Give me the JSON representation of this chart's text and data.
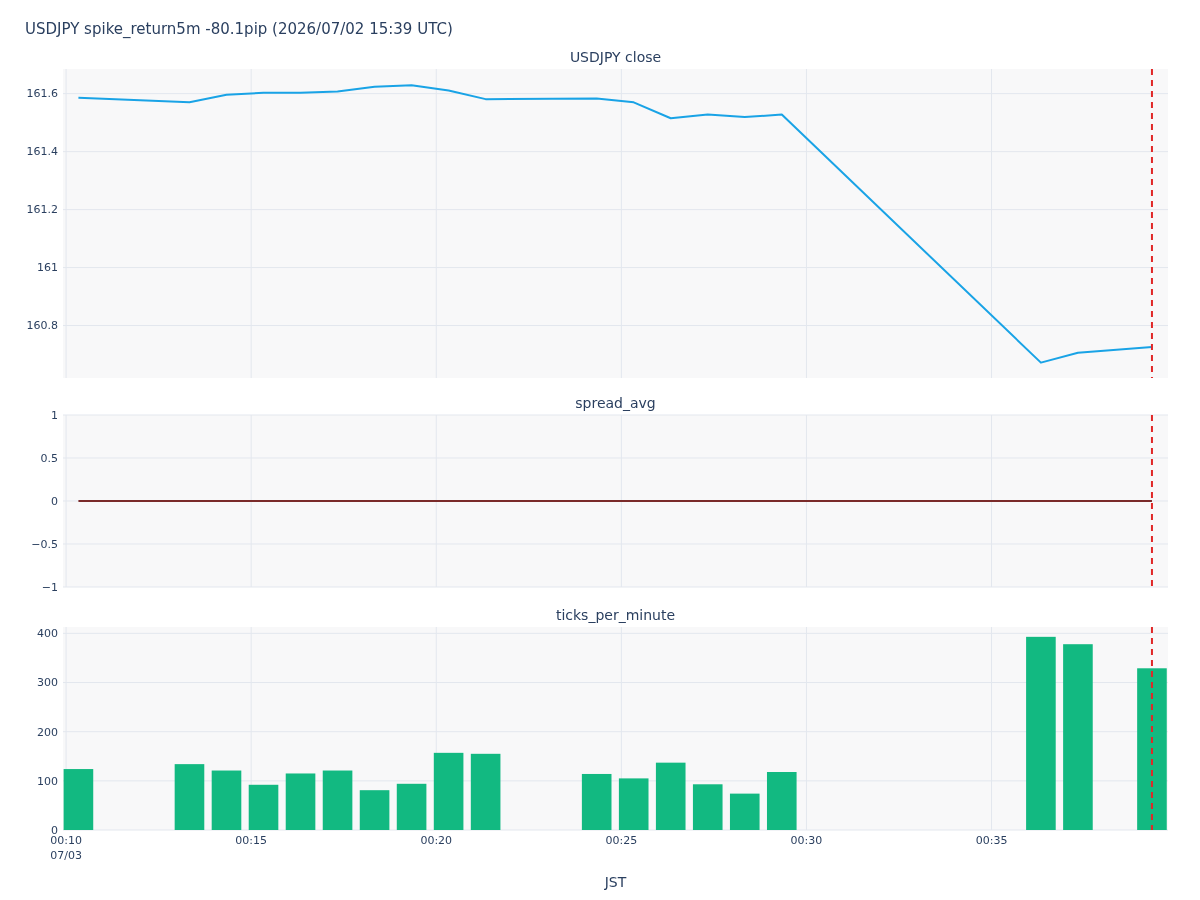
{
  "chart_data": [
    {
      "type": "line",
      "title": "USDJPY spike_return5m -80.1pip (2026/07/02 15:39 UTC)",
      "subtitle": "USDJPY close",
      "x": [
        "2026-07-03T00:10:20",
        "2026-07-03T00:13:20",
        "2026-07-03T00:14:20",
        "2026-07-03T00:15:20",
        "2026-07-03T00:16:20",
        "2026-07-03T00:17:20",
        "2026-07-03T00:18:20",
        "2026-07-03T00:19:20",
        "2026-07-03T00:20:20",
        "2026-07-03T00:21:20",
        "2026-07-03T00:24:20",
        "2026-07-03T00:25:20",
        "2026-07-03T00:26:20",
        "2026-07-03T00:27:20",
        "2026-07-03T00:28:20",
        "2026-07-03T00:29:20",
        "2026-07-03T00:36:20",
        "2026-07-03T00:37:20",
        "2026-07-03T00:39:20"
      ],
      "series": [
        {
          "color": "#19a3e6",
          "values": [
            161.586,
            161.57,
            161.596,
            161.603,
            161.603,
            161.607,
            161.624,
            161.629,
            161.611,
            161.581,
            161.583,
            161.57,
            161.515,
            161.528,
            161.519,
            161.528,
            160.672,
            160.706,
            160.726
          ]
        }
      ],
      "xlim": [
        "2026-07-03T00:09:55",
        "2026-07-03T00:39:46"
      ],
      "xticks": [
        {
          "value": "2026-07-03T00:10",
          "label": null
        },
        {
          "value": "2026-07-03T00:15",
          "label": null
        },
        {
          "value": "2026-07-03T00:20",
          "label": null
        },
        {
          "value": "2026-07-03T00:25",
          "label": null
        },
        {
          "value": "2026-07-03T00:30",
          "label": null
        },
        {
          "value": "2026-07-03T00:35",
          "label": null
        }
      ],
      "ylim": [
        160.619,
        161.685
      ],
      "yticks": [
        160.8,
        161,
        161.2,
        161.4,
        161.6
      ],
      "grid": true,
      "tick_labels": "y",
      "ref_lines": [
        {
          "axis": "x",
          "value": "2026-07-03T00:39:20",
          "color": "#e02828",
          "line_style": "dashed"
        }
      ]
    },
    {
      "type": "line",
      "title": "spread_avg",
      "x": [
        "2026-07-03T00:10:20",
        "2026-07-03T00:13:20",
        "2026-07-03T00:14:20",
        "2026-07-03T00:15:20",
        "2026-07-03T00:16:20",
        "2026-07-03T00:17:20",
        "2026-07-03T00:18:20",
        "2026-07-03T00:19:20",
        "2026-07-03T00:20:20",
        "2026-07-03T00:21:20",
        "2026-07-03T00:24:20",
        "2026-07-03T00:25:20",
        "2026-07-03T00:26:20",
        "2026-07-03T00:27:20",
        "2026-07-03T00:28:20",
        "2026-07-03T00:29:20",
        "2026-07-03T00:36:20",
        "2026-07-03T00:37:20",
        "2026-07-03T00:39:20"
      ],
      "series": [
        {
          "color": "#7a2a2a",
          "values": [
            0,
            0,
            0,
            0,
            0,
            0,
            0,
            0,
            0,
            0,
            0,
            0,
            0,
            0,
            0,
            0,
            0,
            0,
            0
          ]
        }
      ],
      "xlim": [
        "2026-07-03T00:09:55",
        "2026-07-03T00:39:46"
      ],
      "xticks": [
        {
          "value": "2026-07-03T00:10",
          "label": null
        },
        {
          "value": "2026-07-03T00:15",
          "label": null
        },
        {
          "value": "2026-07-03T00:20",
          "label": null
        },
        {
          "value": "2026-07-03T00:25",
          "label": null
        },
        {
          "value": "2026-07-03T00:30",
          "label": null
        },
        {
          "value": "2026-07-03T00:35",
          "label": null
        }
      ],
      "ylim": [
        -1,
        1
      ],
      "yticks": [
        {
          "value": -1,
          "label": "−1"
        },
        {
          "value": -0.5,
          "label": "−0.5"
        },
        0,
        0.5,
        1
      ],
      "grid": true,
      "tick_labels": "y",
      "ref_lines": [
        {
          "axis": "x",
          "value": "2026-07-03T00:39:20",
          "color": "#e02828",
          "line_style": "dashed"
        }
      ]
    },
    {
      "type": "bar",
      "title": "ticks_per_minute",
      "xlabel": "JST",
      "x": [
        "2026-07-03T00:10:20",
        "2026-07-03T00:13:20",
        "2026-07-03T00:14:20",
        "2026-07-03T00:15:20",
        "2026-07-03T00:16:20",
        "2026-07-03T00:17:20",
        "2026-07-03T00:18:20",
        "2026-07-03T00:19:20",
        "2026-07-03T00:20:20",
        "2026-07-03T00:21:20",
        "2026-07-03T00:24:20",
        "2026-07-03T00:25:20",
        "2026-07-03T00:26:20",
        "2026-07-03T00:27:20",
        "2026-07-03T00:28:20",
        "2026-07-03T00:29:20",
        "2026-07-03T00:36:20",
        "2026-07-03T00:37:20",
        "2026-07-03T00:39:20"
      ],
      "series": [
        {
          "color": "#12b981",
          "values": [
            124,
            134,
            121,
            92,
            115,
            121,
            81,
            94,
            157,
            155,
            114,
            105,
            137,
            93,
            74,
            118,
            393,
            378,
            329
          ]
        }
      ],
      "xlim": [
        "2026-07-03T00:09:55",
        "2026-07-03T00:39:46"
      ],
      "xticks": [
        {
          "value": "2026-07-03T00:10",
          "label": "00:10\n07/03"
        },
        {
          "value": "2026-07-03T00:15",
          "label": "00:15"
        },
        {
          "value": "2026-07-03T00:20",
          "label": "00:20"
        },
        {
          "value": "2026-07-03T00:25",
          "label": "00:25"
        },
        {
          "value": "2026-07-03T00:30",
          "label": "00:30"
        },
        {
          "value": "2026-07-03T00:35",
          "label": "00:35"
        }
      ],
      "ylim": [
        0,
        413
      ],
      "yticks": [
        0,
        100,
        200,
        300,
        400
      ],
      "grid": true,
      "ref_lines": [
        {
          "axis": "x",
          "value": "2026-07-03T00:39:20",
          "color": "#e02828",
          "line_style": "dashed"
        }
      ]
    }
  ]
}
